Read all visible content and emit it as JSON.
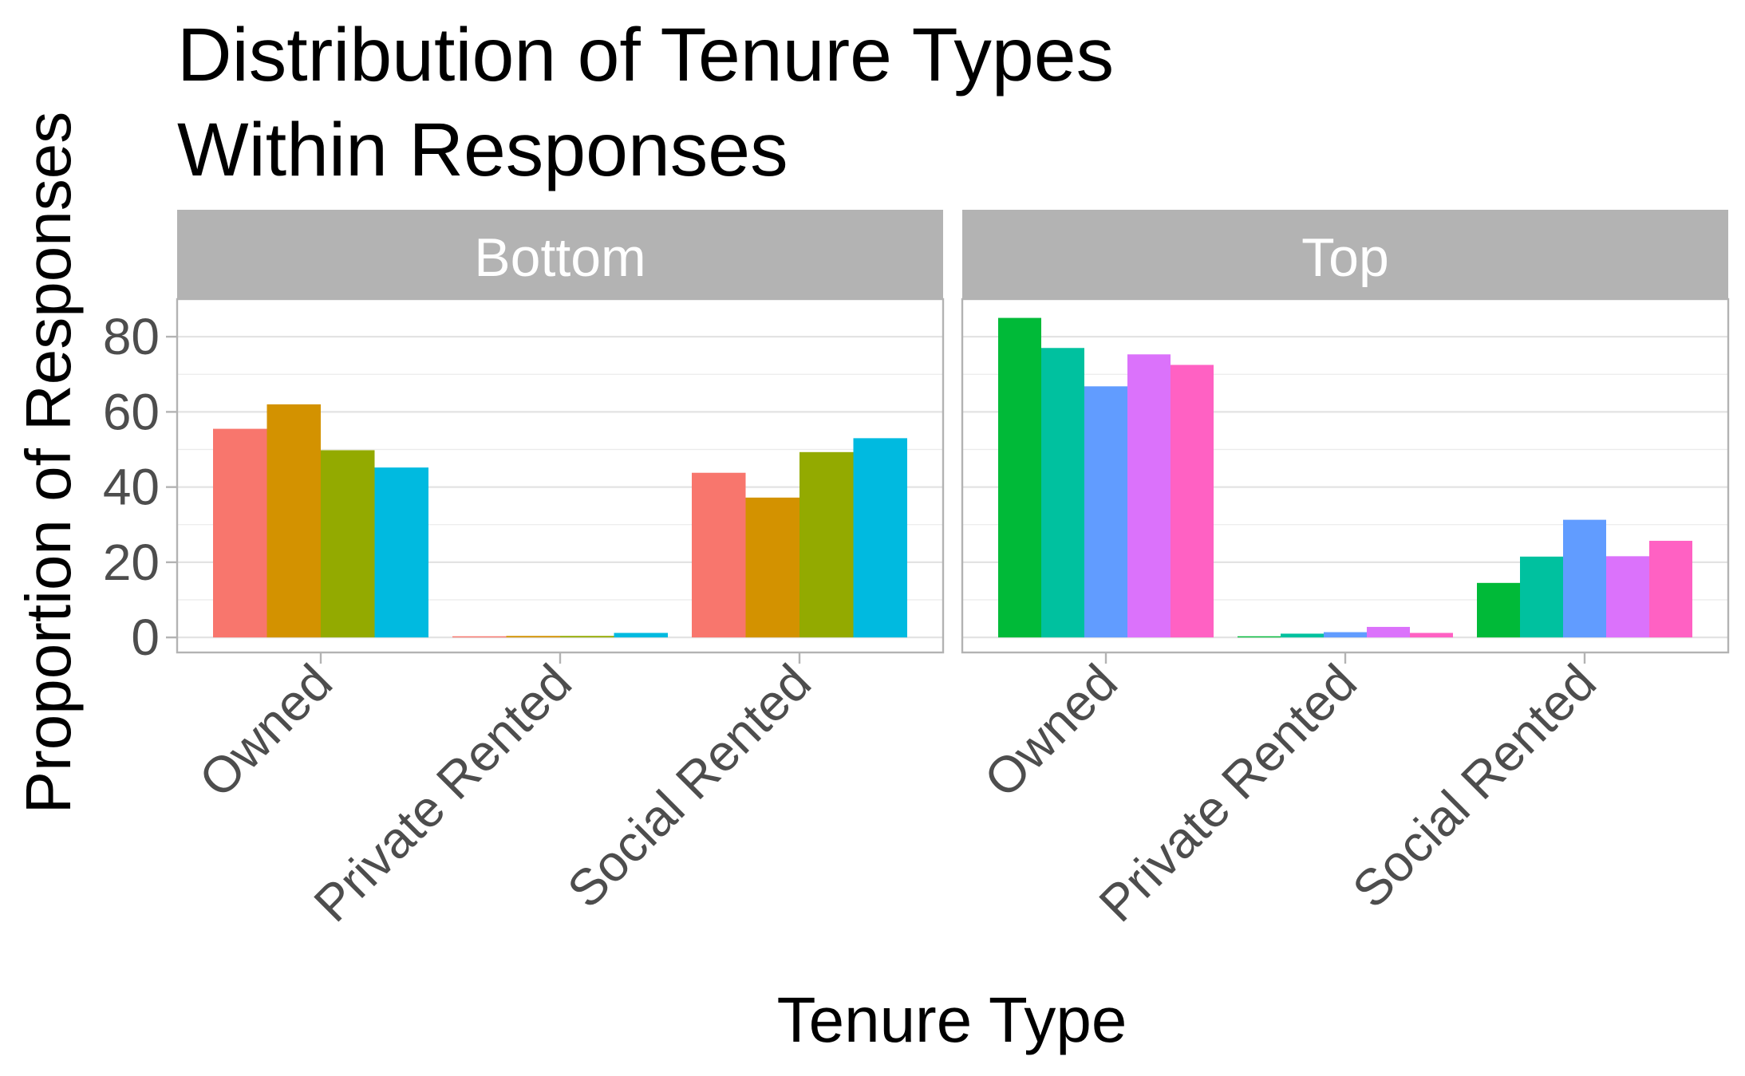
{
  "chart_data": {
    "type": "bar",
    "title": [
      "Distribution of Tenure Types",
      "Within Responses"
    ],
    "xlabel": "Tenure Type",
    "ylabel": "Proportion of Responses",
    "ylim": [
      -4,
      90
    ],
    "y_ticks": [
      0,
      20,
      40,
      60,
      80
    ],
    "categories": [
      "Owned",
      "Private Rented",
      "Social Rented"
    ],
    "grid": true,
    "legend": "none",
    "panels": [
      {
        "name": "Bottom",
        "series": [
          {
            "values": [
              55.5,
              0.3,
              43.8
            ],
            "color": "#F8766D"
          },
          {
            "values": [
              62.0,
              0.4,
              37.2
            ],
            "color": "#D39200"
          },
          {
            "values": [
              49.8,
              0.4,
              49.3
            ],
            "color": "#93AA00"
          },
          {
            "values": [
              45.2,
              1.2,
              53.0
            ],
            "color": "#00BAE0"
          }
        ]
      },
      {
        "name": "Top",
        "series": [
          {
            "values": [
              85.0,
              0.3,
              14.5
            ],
            "color": "#00BA38"
          },
          {
            "values": [
              77.0,
              1.0,
              21.5
            ],
            "color": "#00C19F"
          },
          {
            "values": [
              66.8,
              1.4,
              31.3
            ],
            "color": "#619CFF"
          },
          {
            "values": [
              75.3,
              2.8,
              21.6
            ],
            "color": "#DB72FB"
          },
          {
            "values": [
              72.5,
              1.2,
              25.7
            ],
            "color": "#FF61C3"
          }
        ]
      }
    ]
  }
}
